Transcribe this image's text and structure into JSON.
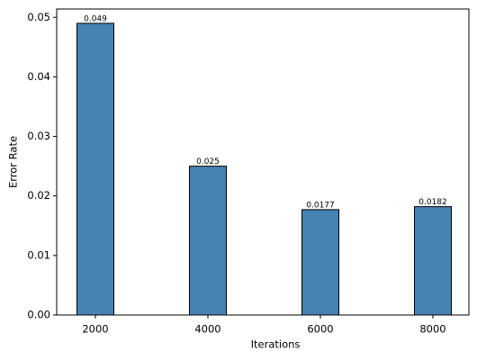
{
  "chart_data": {
    "type": "bar",
    "x_label": "Iterations",
    "y_label": "Error Rate",
    "categories": [
      "2000",
      "4000",
      "6000",
      "8000"
    ],
    "values": [
      0.049,
      0.025,
      0.0177,
      0.0182
    ],
    "color": "#4682b4",
    "ylim": [
      0,
      0.0514
    ],
    "yticks": [
      {
        "value": 0,
        "label": "0.00"
      },
      {
        "value": 0.01,
        "label": "0.01"
      },
      {
        "value": 0.02,
        "label": "0.02"
      },
      {
        "value": 0.03,
        "label": "0.03"
      },
      {
        "value": 0.04,
        "label": "0.04"
      },
      {
        "value": 0.05,
        "label": "0.05"
      }
    ],
    "grid": false
  }
}
